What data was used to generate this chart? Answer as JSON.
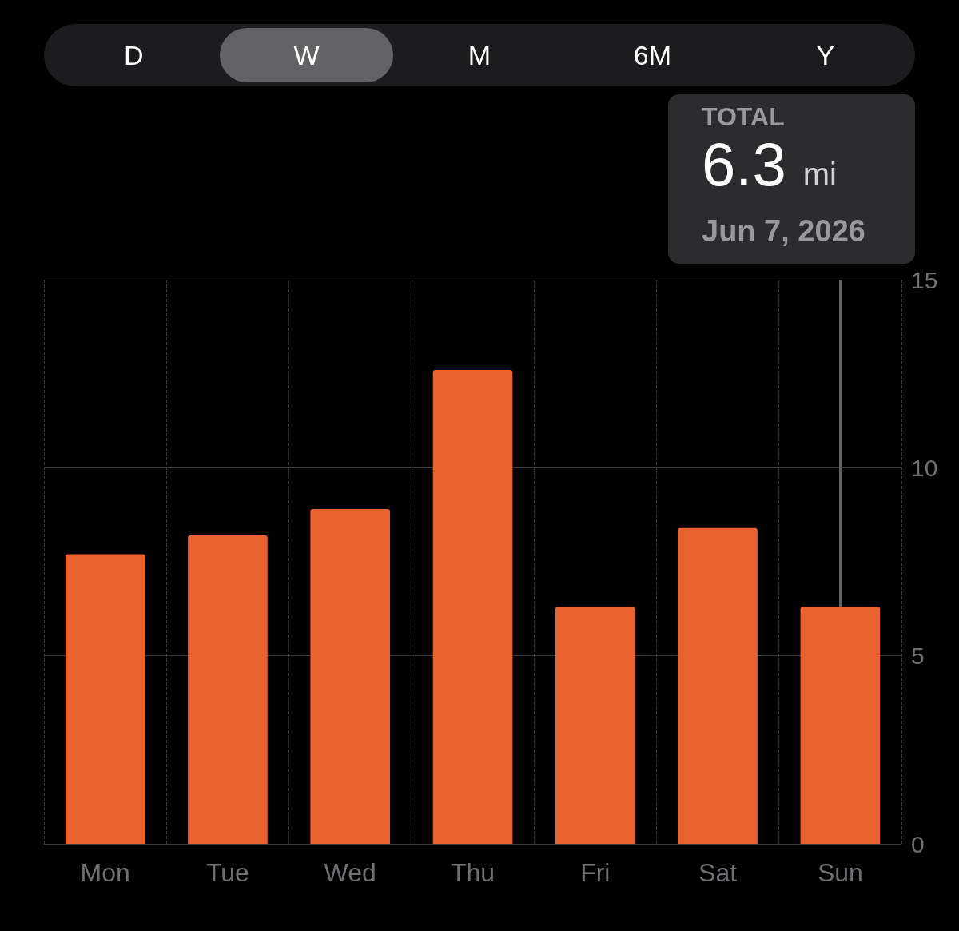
{
  "chart_data": {
    "type": "bar",
    "categories": [
      "Mon",
      "Tue",
      "Wed",
      "Thu",
      "Fri",
      "Sat",
      "Sun"
    ],
    "values": [
      7.7,
      8.2,
      8.9,
      12.6,
      6.3,
      8.4,
      6.3
    ],
    "color": "#e8612f",
    "ylim": [
      0,
      15
    ],
    "yticks": [
      0,
      5,
      10,
      15
    ],
    "grid": true,
    "annotations": [
      "D",
      "W",
      "M",
      "6M",
      "Y",
      "TOTAL",
      "6.3 mi",
      "Jun 7, 2026"
    ],
    "ref_lines": [
      {
        "axis": "x",
        "value": "Sun",
        "color": "#636366"
      }
    ]
  }
}
